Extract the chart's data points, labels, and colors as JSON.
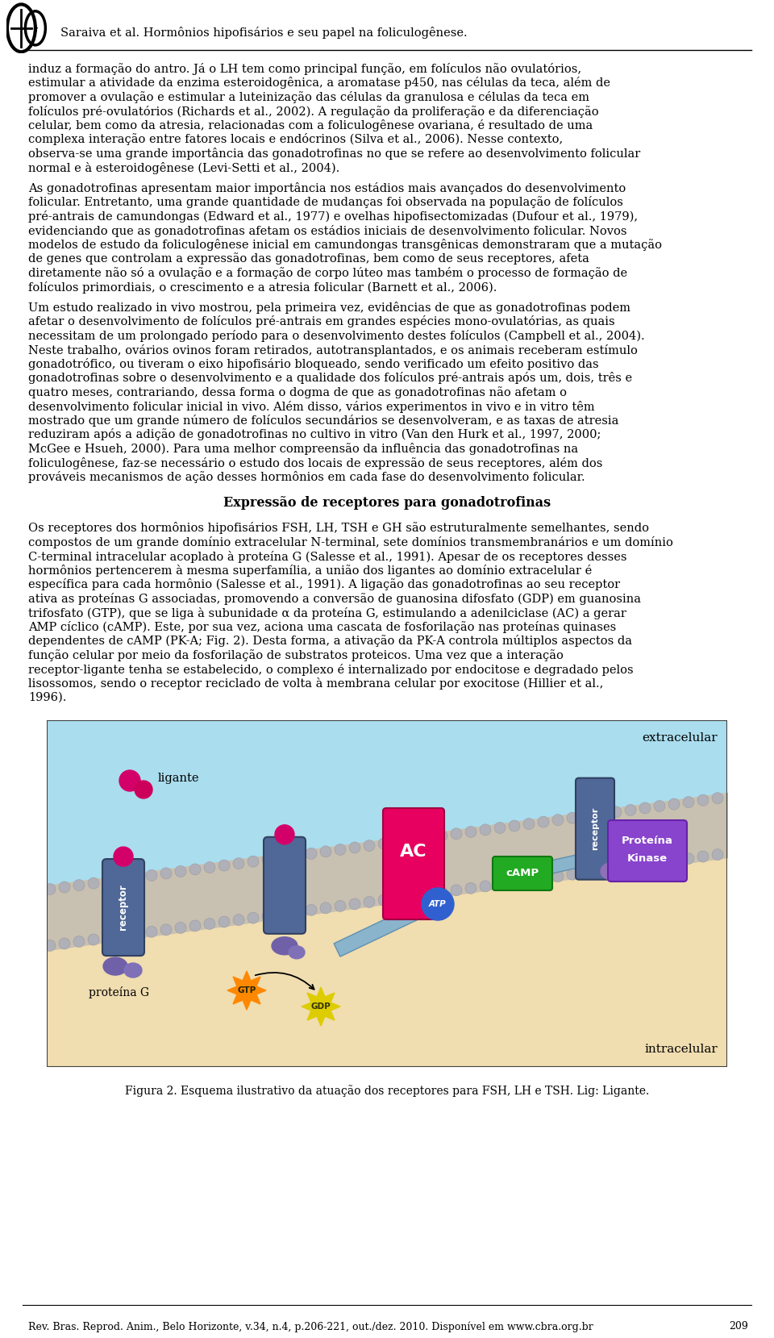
{
  "title_line": "Saraiva et al. Hormônios hipofisários e seu papel na foliculogênese.",
  "footer_line": "Rev. Bras. Reprod. Anim., Belo Horizonte, v.34, n.4, p.206-221, out./dez. 2010. Disponível em www.cbra.org.br",
  "page_number": "209",
  "section_title": "Expressão de receptores para gonadotrofinas",
  "figure_caption": "Figura 2. Esquema ilustrativo da atuação dos receptores para FSH, LH e TSH. Lig: Ligante.",
  "para1": "induz a formação do antro. Já o LH tem como principal função, em folículos não ovulatórios, estimular a atividade da enzima esteroidogênica, a aromatase p450, nas células da teca, além de promover a ovulação e estimular a luteinização das células da granulosa e células da teca  em folículos pré-ovulatórios (Richards et al., 2002). A regulação da proliferação e da diferenciação celular, bem como da atresia, relacionadas com a foliculogênese ovariana, é resultado de uma complexa interação entre fatores locais e endócrinos (Silva et al., 2006). Nesse contexto, observa-se uma grande importância das gonadotrofinas no que se refere ao desenvolvimento folicular normal e à esteroidogênese (Levi-Setti et al., 2004).",
  "para2": "    As gonadotrofinas apresentam maior importância nos estádios mais avançados do desenvolvimento folicular. Entretanto, uma grande quantidade de mudanças foi observada na população de folículos pré-antrais de camundongas (Edward et al., 1977) e ovelhas hipofisectomizadas (Dufour et al., 1979), evidenciando que as gonadotrofinas afetam os estádios iniciais de desenvolvimento folicular. Novos modelos de estudo da foliculogênese inicial em camundongas transgênicas demonstraram que a mutação de genes que controlam a expressão das gonadotrofinas, bem como de seus receptores, afeta diretamente não só a ovulação e a formação de corpo lúteo mas também o processo de formação de folículos primordiais, o crescimento e a atresia folicular (Barnett et al., 2006).",
  "para3": "    Um estudo realizado in vivo mostrou, pela primeira vez, evidências de que as gonadotrofinas podem afetar o desenvolvimento de folículos pré-antrais em grandes espécies mono-ovulatórias, as quais necessitam de um prolongado período para o desenvolvimento destes folículos (Campbell et al., 2004). Neste trabalho, ovários ovinos foram retirados, autotransplantados, e os animais receberam estímulo gonadotrófico, ou tiveram o eixo hipofisário bloqueado, sendo verificado um efeito positivo das gonadotrofinas sobre o desenvolvimento e a qualidade dos folículos pré-antrais após um, dois, três e quatro meses, contrariando, dessa forma o dogma de que as gonadotrofinas não afetam o desenvolvimento folicular inicial in vivo. Além disso, vários experimentos in vivo e in vitro têm mostrado que um grande número de folículos secundários se desenvolveram, e as taxas de atresia reduziram após a adição de gonadotrofinas no cultivo in vitro (Van den Hurk et al., 1997, 2000; McGee e Hsueh, 2000). Para uma melhor compreensão da influência das gonadotrofinas na foliculogênese, faz-se necessário o estudo dos locais de expressão de seus receptores, além dos prováveis mecanismos de ação desses hormônios em cada fase do desenvolvimento folicular.",
  "para4": "    Os receptores dos hormônios hipofisários FSH, LH, TSH e GH são estruturalmente semelhantes, sendo compostos de um grande domínio extracelular N-terminal, sete domínios transmembranários e um domínio C-terminal intracelular acoplado à proteína G (Salesse et al., 1991). Apesar de os receptores desses hormônios pertencerem à mesma superfamília, a união dos ligantes ao domínio extracelular é específica para cada hormônio (Salesse et al., 1991). A ligação das gonadotrofinas ao seu receptor ativa as proteínas G associadas, promovendo a conversão de guanosina difosfato (GDP) em guanosina trifosfato (GTP), que se liga à subunidade α da proteína G, estimulando a adenilciclase (AC) a gerar AMP cíclico (cAMP). Este, por sua vez, aciona uma cascata de fosforilação nas proteínas quinases dependentes de cAMP (PK-A; Fig. 2). Desta forma, a ativação da PK-A controla múltiplos aspectos da função celular por meio da fosforilação de substratos proteicos. Uma vez que a interação receptor-ligante tenha se estabelecido, o complexo é internalizado por endocitose e degradado pelos lisossomos, sendo o receptor reciclado de volta à membrana celular por exocitose (Hillier et al., 1996).",
  "bg_color": "#ffffff"
}
